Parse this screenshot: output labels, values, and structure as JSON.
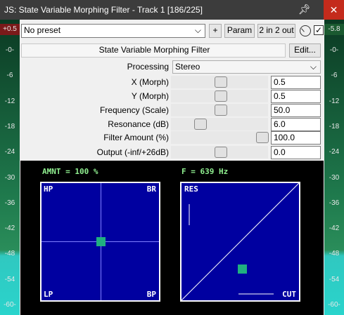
{
  "window": {
    "title": "JS: State Variable Morphing Filter - Track 1 [186/225]"
  },
  "toolbar": {
    "preset": "No preset",
    "add": "+",
    "param": "Param",
    "io": "2 in 2 out"
  },
  "plugin": {
    "name": "State Variable Morphing Filter",
    "edit": "Edit..."
  },
  "params": [
    {
      "label": "Processing",
      "value": "Stereo"
    },
    {
      "label": "X (Morph)",
      "value": "0.5"
    },
    {
      "label": "Y (Morph)",
      "value": "0.5"
    },
    {
      "label": "Frequency (Scale)",
      "value": "50.0"
    },
    {
      "label": "Resonance (dB)",
      "value": "6.0"
    },
    {
      "label": "Filter Amount (%)",
      "value": "100.0"
    },
    {
      "label": "Output (-inf/+26dB)",
      "value": "0.0"
    }
  ],
  "meters": {
    "left_peak": "+0.5",
    "right_peak": "-5.8",
    "scale": [
      "-0-",
      "-6",
      "-12",
      "-18",
      "-24",
      "-30",
      "-36",
      "-42",
      "-48",
      "-54",
      "-60-"
    ]
  },
  "display": {
    "amount": "AMNT = 100 %",
    "frequency": "F = 639 Hz",
    "left_pad": {
      "top_left": "HP",
      "top_right": "BR",
      "bottom_left": "LP",
      "bottom_right": "BP"
    },
    "right_pad": {
      "top_left": "RES",
      "bottom_right": "CUT"
    }
  }
}
